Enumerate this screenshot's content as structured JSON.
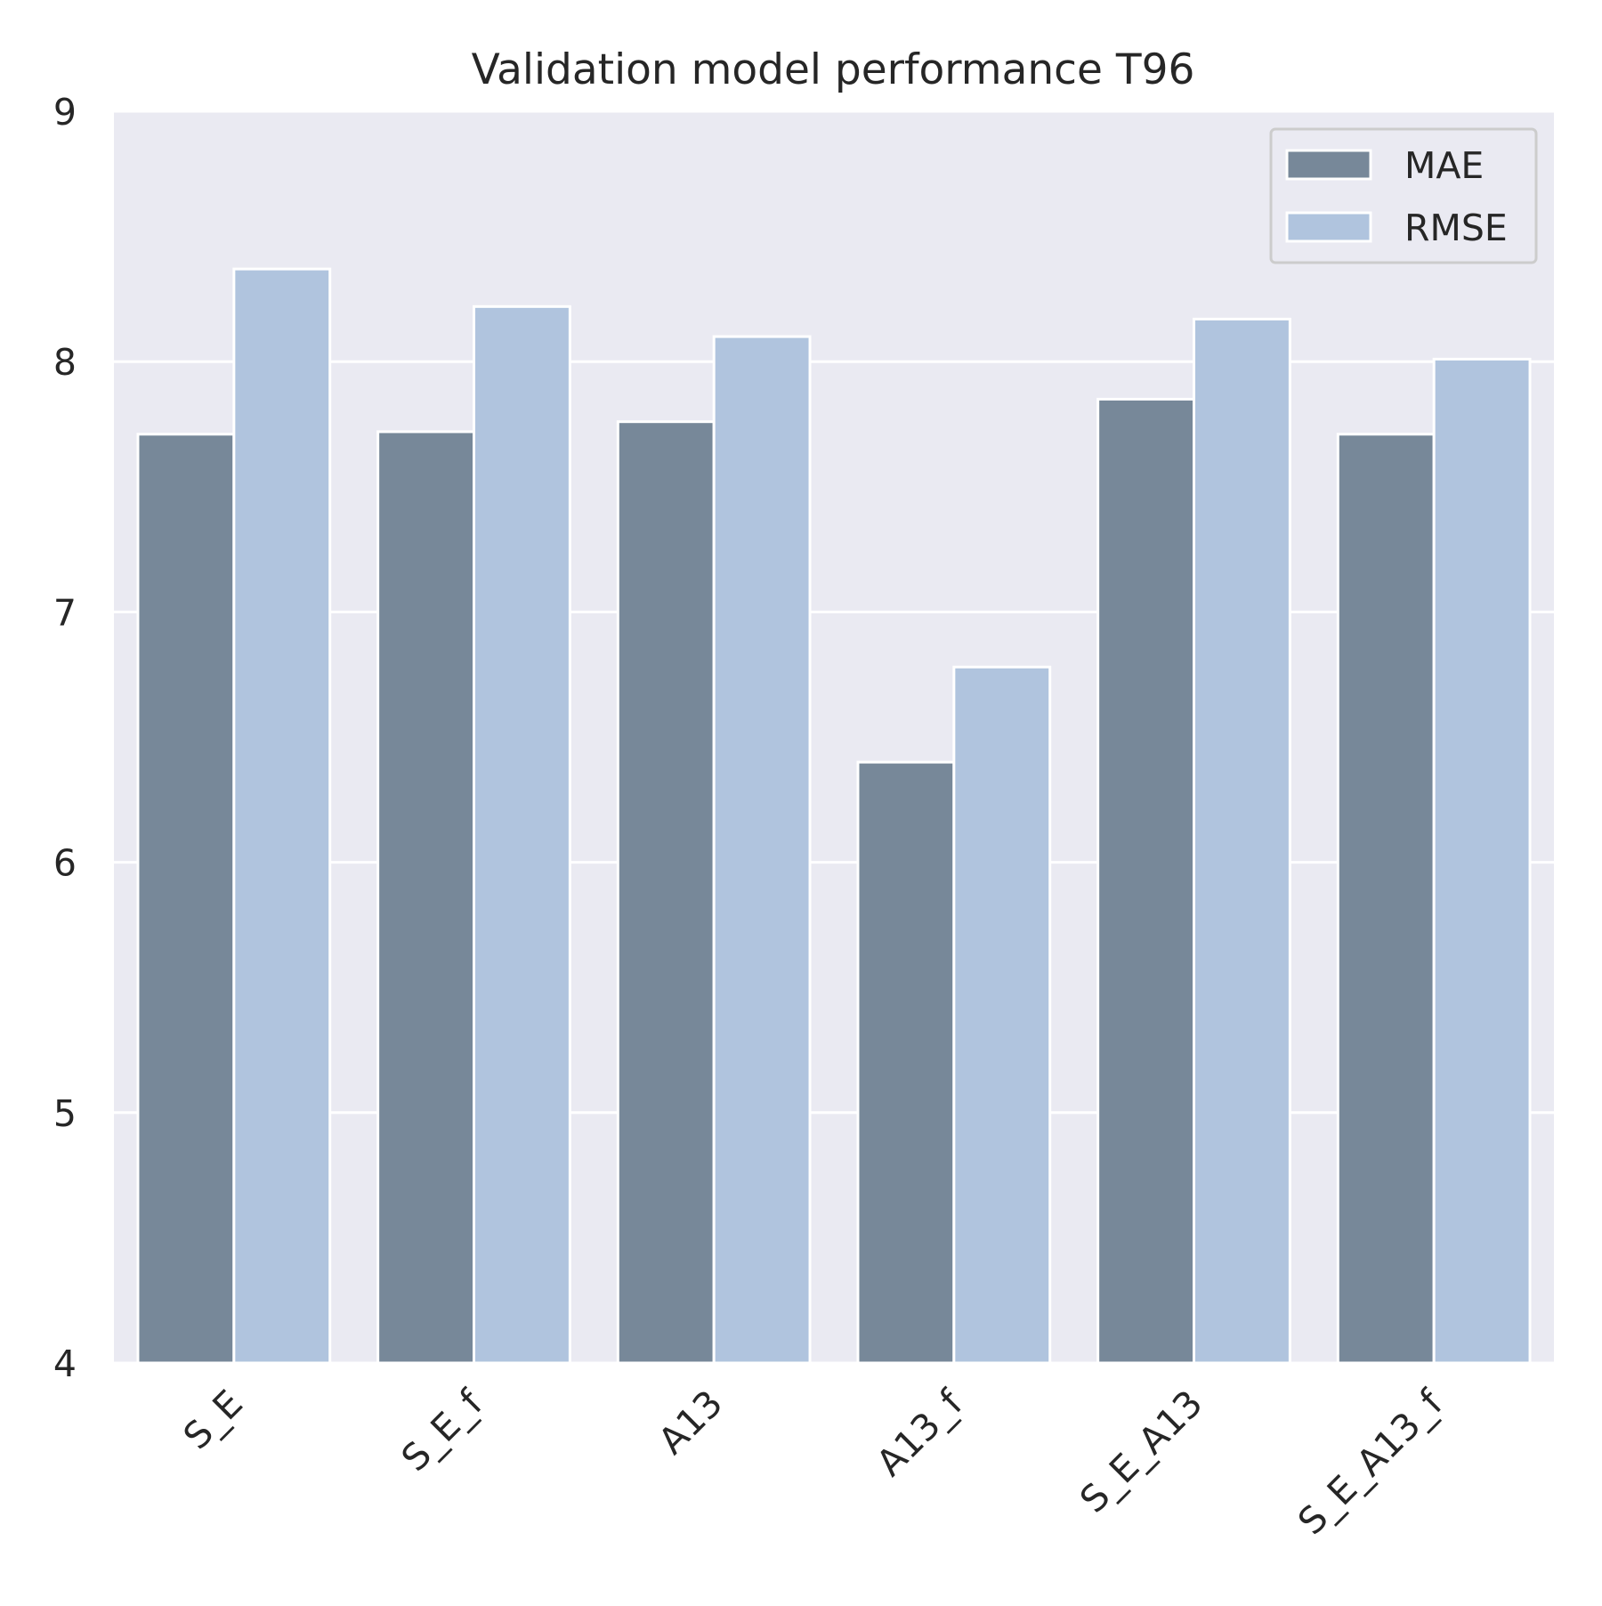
{
  "chart_data": {
    "type": "bar",
    "title": "Validation model performance T96",
    "xlabel": "",
    "ylabel": "",
    "categories": [
      "S_E",
      "S_E_f",
      "A13",
      "A13_f",
      "S_E_A13",
      "S_E_A13_f"
    ],
    "series": [
      {
        "name": "MAE",
        "color": "#778899",
        "values": [
          7.71,
          7.72,
          7.76,
          6.4,
          7.85,
          7.71
        ]
      },
      {
        "name": "RMSE",
        "color": "#b0c4de",
        "values": [
          8.37,
          8.22,
          8.1,
          6.78,
          8.17,
          8.01
        ]
      }
    ],
    "ylim": [
      4,
      9
    ],
    "yticks": [
      "4",
      "5",
      "6",
      "7",
      "8",
      "9"
    ],
    "grid": "horizontal",
    "legend_position": "top-right",
    "plot_background": "#eaeaf2",
    "grid_color": "#ffffff"
  }
}
